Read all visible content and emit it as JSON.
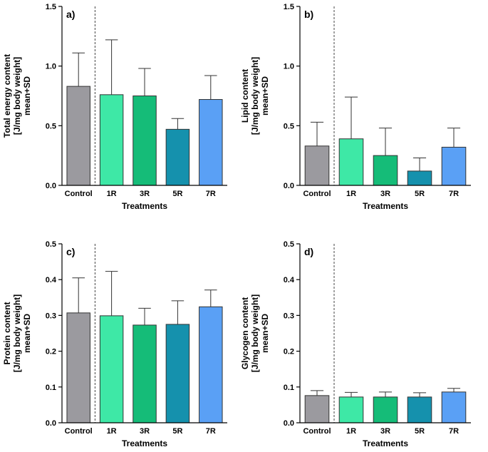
{
  "colors": {
    "Control": "#9b9a9f",
    "1R": "#3ee8a6",
    "3R": "#15bc78",
    "5R": "#1591ad",
    "7R": "#5aa0f5"
  },
  "chart_data": [
    {
      "type": "bar",
      "panel_label": "a)",
      "ylabel_lines": [
        "Total energy content",
        "[J/mg body weight]",
        "mean+SD"
      ],
      "xlabel": "Treatments",
      "categories": [
        "Control",
        "1R",
        "3R",
        "5R",
        "7R"
      ],
      "values": [
        0.83,
        0.76,
        0.75,
        0.47,
        0.72
      ],
      "sd": [
        0.28,
        0.46,
        0.23,
        0.09,
        0.2
      ],
      "ylim": [
        0,
        1.5
      ],
      "yticks": [
        0.0,
        0.5,
        1.0,
        1.5
      ],
      "ytick_labels": [
        "0.0",
        "0.5",
        "1.0",
        "1.5"
      ]
    },
    {
      "type": "bar",
      "panel_label": "b)",
      "ylabel_lines": [
        "Lipid content",
        "[J/mg body weight]",
        "mean+SD"
      ],
      "xlabel": "Treatments",
      "categories": [
        "Control",
        "1R",
        "3R",
        "5R",
        "7R"
      ],
      "values": [
        0.33,
        0.39,
        0.25,
        0.12,
        0.32
      ],
      "sd": [
        0.2,
        0.35,
        0.23,
        0.11,
        0.16
      ],
      "ylim": [
        0,
        1.5
      ],
      "yticks": [
        0.0,
        0.5,
        1.0,
        1.5
      ],
      "ytick_labels": [
        "0.0",
        "0.5",
        "1.0",
        "1.5"
      ]
    },
    {
      "type": "bar",
      "panel_label": "c)",
      "ylabel_lines": [
        "Protein content",
        "[J/mg body weight]",
        "mean+SD"
      ],
      "xlabel": "Treatments",
      "categories": [
        "Control",
        "1R",
        "3R",
        "5R",
        "7R"
      ],
      "values": [
        0.307,
        0.299,
        0.273,
        0.275,
        0.324
      ],
      "sd": [
        0.098,
        0.124,
        0.047,
        0.066,
        0.047
      ],
      "ylim": [
        0,
        0.5
      ],
      "yticks": [
        0.0,
        0.1,
        0.2,
        0.3,
        0.4,
        0.5
      ],
      "ytick_labels": [
        "0.0",
        "0.1",
        "0.2",
        "0.3",
        "0.4",
        "0.5"
      ]
    },
    {
      "type": "bar",
      "panel_label": "d)",
      "ylabel_lines": [
        "Glycogen content",
        "[J/mg body weight]",
        "mean+SD"
      ],
      "xlabel": "Treatments",
      "categories": [
        "Control",
        "1R",
        "3R",
        "5R",
        "7R"
      ],
      "values": [
        0.076,
        0.072,
        0.072,
        0.072,
        0.086
      ],
      "sd": [
        0.014,
        0.013,
        0.014,
        0.012,
        0.01
      ],
      "ylim": [
        0,
        0.5
      ],
      "yticks": [
        0.0,
        0.1,
        0.2,
        0.3,
        0.4,
        0.5
      ],
      "ytick_labels": [
        "0.0",
        "0.1",
        "0.2",
        "0.3",
        "0.4",
        "0.5"
      ]
    }
  ]
}
